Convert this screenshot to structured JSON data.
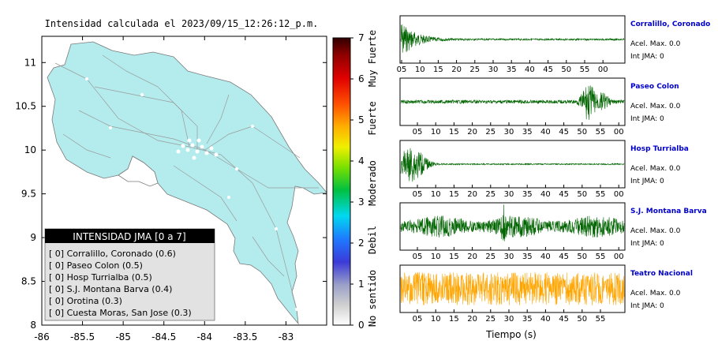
{
  "map": {
    "title": "Intensidad calculada el 2023/09/15_12:26:12_p.m.",
    "x_ticks": [
      "-86",
      "-85.5",
      "-85",
      "-84.5",
      "-84",
      "-83.5",
      "-83"
    ],
    "y_ticks": [
      "11",
      "10.5",
      "10",
      "9.5",
      "9",
      "8.5",
      "8"
    ],
    "land_color": "#b4ecee",
    "legend": {
      "title": "INTENSIDAD JMA [0 a 7]",
      "items": [
        "[ 0]  Corralillo, Coronado (0.6)",
        "[ 0]  Paseo Colon (0.5)",
        "[ 0]  Hosp Turrialba (0.5)",
        "[ 0]  S.J. Montana Barva (0.4)",
        "[ 0]  Orotina (0.3)",
        "[ 0]  Cuesta Moras, San Jose (0.3)"
      ]
    }
  },
  "colorbar": {
    "ticks": [
      "7",
      "6",
      "5",
      "4",
      "3",
      "2",
      "1",
      "0"
    ],
    "labels": [
      "Muy Fuerte",
      "Fuerte",
      "Moderado",
      "Debil",
      "No sentido"
    ]
  },
  "traces": [
    {
      "station": "Corralillo, Coronado",
      "accel": "Acel. Max. 0.0",
      "int": "Int JMA: 0",
      "color": "#006400",
      "tick_labels": [
        "05",
        "10",
        "15",
        "20",
        "25",
        "30",
        "35",
        "40",
        "45",
        "50",
        "55",
        "00"
      ]
    },
    {
      "station": "Paseo Colon",
      "accel": "Acel. Max. 0.0",
      "int": "Int JMA: 0",
      "color": "#006400",
      "tick_labels": [
        "05",
        "10",
        "15",
        "20",
        "25",
        "30",
        "35",
        "40",
        "45",
        "50",
        "55",
        "00"
      ]
    },
    {
      "station": "Hosp Turrialba",
      "accel": "Acel. Max. 0.0",
      "int": "Int JMA: 0",
      "color": "#006400",
      "tick_labels": [
        "05",
        "10",
        "15",
        "20",
        "25",
        "30",
        "35",
        "40",
        "45",
        "50",
        "55",
        "00"
      ]
    },
    {
      "station": "S.J. Montana Barva",
      "accel": "Acel. Max. 0.0",
      "int": "Int JMA: 0",
      "color": "#006400",
      "tick_labels": [
        "05",
        "10",
        "15",
        "20",
        "25",
        "30",
        "35",
        "40",
        "45",
        "50",
        "55",
        "00"
      ]
    },
    {
      "station": "Teatro Nacional",
      "accel": "Acel. Max. 0.0",
      "int": "Int JMA: 0",
      "color": "#ffa500",
      "tick_labels": [
        "05",
        "10",
        "15",
        "20",
        "25",
        "30",
        "35",
        "40",
        "45",
        "50",
        "55"
      ]
    }
  ],
  "xlabel": "Tiempo (s)",
  "chart_data": [
    {
      "type": "scatter",
      "title": "Intensidad calculada el 2023/09/15_12:26:12_p.m.",
      "xlim": [
        -86,
        -82.5
      ],
      "ylim": [
        8,
        11.3
      ],
      "x_ticks": [
        -86,
        -85.5,
        -85,
        -84.5,
        -84,
        -83.5,
        -83
      ],
      "y_ticks": [
        8,
        8.5,
        9,
        9.5,
        10,
        10.5,
        11
      ],
      "legend": [
        "Corralillo, Coronado (0.6)",
        "Paseo Colon (0.5)",
        "Hosp Turrialba (0.5)",
        "S.J. Montana Barva (0.4)",
        "Orotina (0.3)",
        "Cuesta Moras, San Jose (0.3)"
      ],
      "intensities": [
        0,
        0,
        0,
        0,
        0,
        0
      ],
      "calculated": [
        0.6,
        0.5,
        0.5,
        0.4,
        0.3,
        0.3
      ]
    },
    {
      "type": "line",
      "xlabel": "Tiempo (s)",
      "series": [
        {
          "name": "Corralillo, Coronado",
          "accel_max": 0.0,
          "int_jma": 0
        },
        {
          "name": "Paseo Colon",
          "accel_max": 0.0,
          "int_jma": 0
        },
        {
          "name": "Hosp Turrialba",
          "accel_max": 0.0,
          "int_jma": 0
        },
        {
          "name": "S.J. Montana Barva",
          "accel_max": 0.0,
          "int_jma": 0
        },
        {
          "name": "Teatro Nacional",
          "accel_max": 0.0,
          "int_jma": 0
        }
      ]
    }
  ]
}
